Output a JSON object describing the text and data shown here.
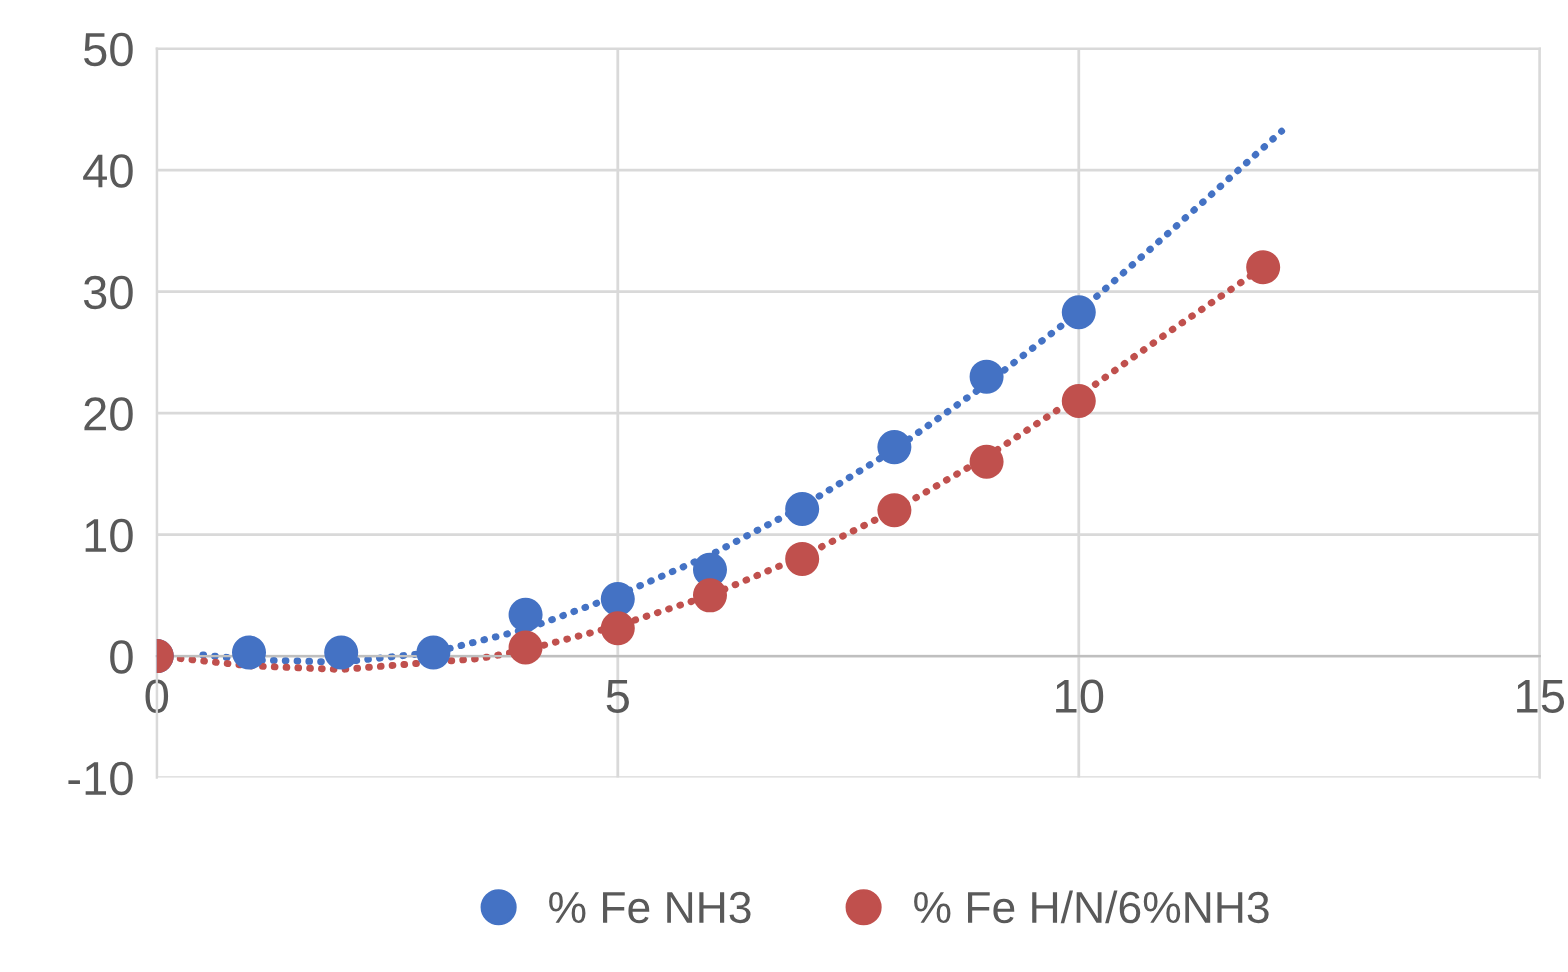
{
  "chart_data": {
    "type": "scatter",
    "xlim": [
      0,
      15
    ],
    "xticks": [
      0,
      5,
      10,
      15
    ],
    "ylim": [
      -10,
      50
    ],
    "yticks": [
      -10,
      0,
      10,
      20,
      30,
      40,
      50
    ],
    "grid": true,
    "legend": "bottom",
    "series": [
      {
        "name": "% Fe NH3",
        "marker": "circle",
        "color": "#4472c4",
        "x": [
          0,
          1,
          2,
          3,
          4,
          5,
          6,
          7,
          8,
          9,
          10
        ],
        "values": [
          0,
          0.3,
          0.3,
          0.3,
          3.4,
          4.7,
          7.1,
          12.1,
          17.2,
          23,
          28.3
        ]
      },
      {
        "name": "% Fe H/N/6%NH3",
        "marker": "circle",
        "color": "#c0504d",
        "x": [
          0,
          4,
          5,
          6,
          7,
          8,
          9,
          10,
          12
        ],
        "values": [
          0,
          0.7,
          2.3,
          5,
          8,
          12,
          16,
          21,
          32
        ]
      },
      {
        "type": "line",
        "marker": "none",
        "line_style": "dotted",
        "color": "#4472c4",
        "x": [
          0.5,
          1,
          2,
          3,
          4,
          5,
          6,
          7,
          8,
          9,
          10,
          11,
          12.2
        ],
        "values": [
          0.1,
          -0.3,
          -0.5,
          0.3,
          2.2,
          5,
          8.3,
          12.3,
          17,
          22.4,
          28.3,
          35,
          43.2
        ]
      },
      {
        "type": "line",
        "marker": "none",
        "line_style": "dotted",
        "color": "#c0504d",
        "x": [
          0,
          1,
          2,
          3.5,
          4,
          5,
          6,
          7,
          8,
          9,
          10,
          11,
          12
        ],
        "values": [
          0,
          -0.8,
          -1.1,
          -0.2,
          0.5,
          2.5,
          5,
          8.2,
          12,
          16.4,
          21.4,
          26.8,
          32
        ]
      }
    ]
  }
}
